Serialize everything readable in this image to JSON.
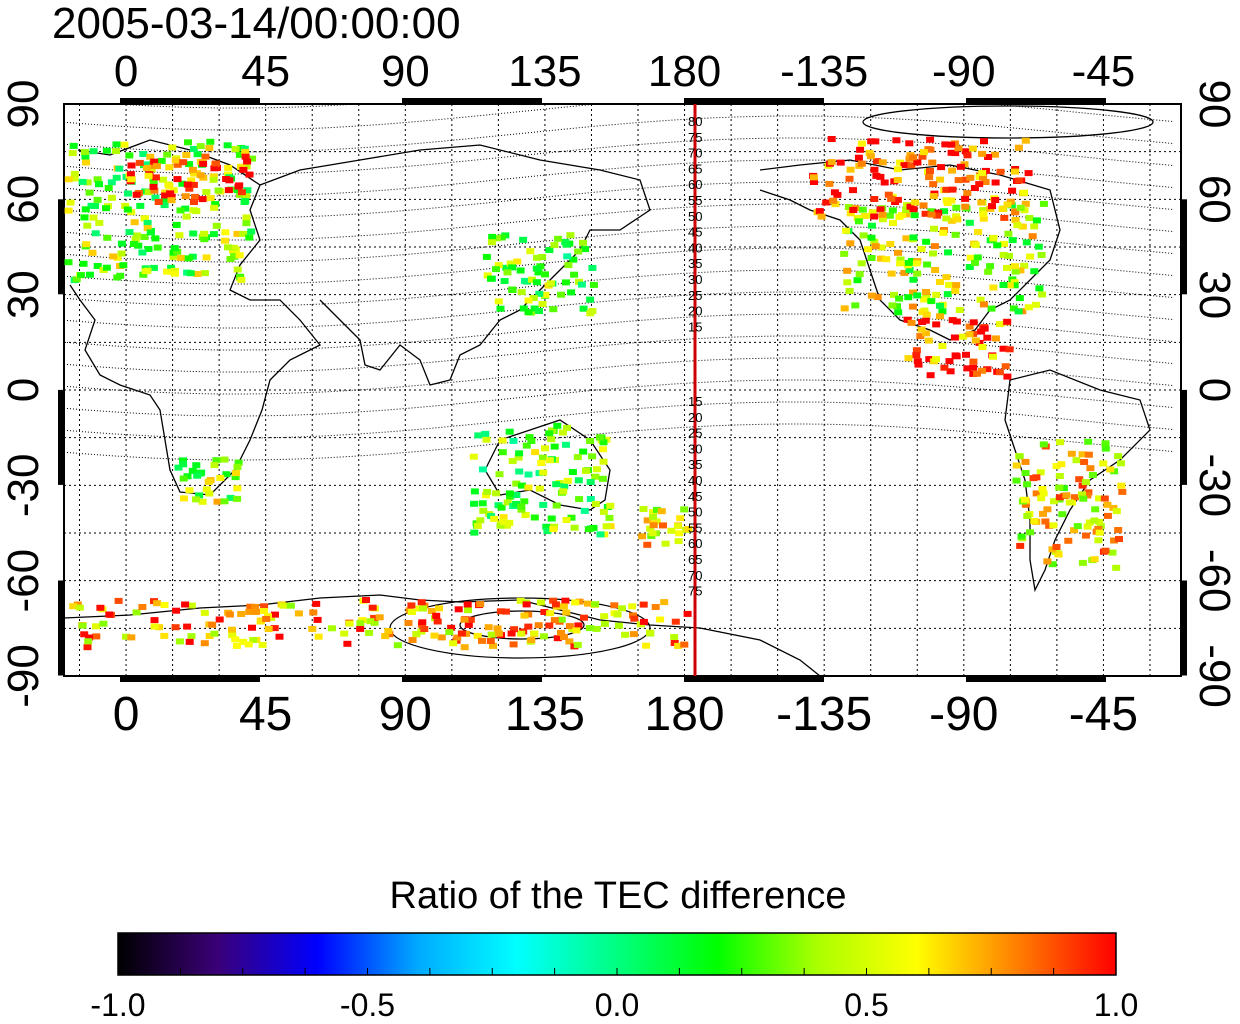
{
  "title": "2005-03-14/00:00:00",
  "top_tick_labels": [
    "0",
    "45",
    "90",
    "135",
    "180",
    "-135",
    "-90",
    "-45"
  ],
  "bottom_tick_labels": [
    "0",
    "45",
    "90",
    "135",
    "180",
    "-135",
    "-90",
    "-45"
  ],
  "left_tick_labels": [
    "90",
    "60",
    "30",
    "0",
    "-30",
    "-60",
    "-90"
  ],
  "right_tick_labels": [
    "90",
    "60",
    "30",
    "0",
    "-30",
    "-60",
    "-90"
  ],
  "meridian_labels_north": [
    "80",
    "75",
    "70",
    "65",
    "60",
    "55",
    "50",
    "45",
    "40",
    "35",
    "30",
    "25",
    "20",
    "15"
  ],
  "meridian_labels_south": [
    "15",
    "20",
    "25",
    "30",
    "35",
    "40",
    "45",
    "50",
    "55",
    "60",
    "65",
    "70",
    "75"
  ],
  "colorbar": {
    "title": "Ratio of the TEC difference",
    "tick_labels": [
      "-1.0",
      "-0.5",
      "0.0",
      "0.5",
      "1.0"
    ],
    "range": [
      -1.0,
      1.0
    ],
    "colors": [
      "#000000",
      "#3a0078",
      "#0000ff",
      "#00aaff",
      "#00ffff",
      "#00ff80",
      "#00ff00",
      "#aaff00",
      "#ffff00",
      "#ff8000",
      "#ff0000"
    ]
  },
  "colors": {
    "meridian_line": "#cc0000",
    "coastline": "#000000",
    "grid": "#000000"
  },
  "data_regions": [
    {
      "name": "europe",
      "lon": [
        -20,
        40
      ],
      "lat": [
        35,
        80
      ],
      "value": 0.35
    },
    {
      "name": "scandinavia",
      "lon": [
        0,
        40
      ],
      "lat": [
        60,
        75
      ],
      "value": 0.95
    },
    {
      "name": "japan-east-asia",
      "lon": [
        115,
        150
      ],
      "lat": [
        25,
        50
      ],
      "value": 0.3
    },
    {
      "name": "north-america",
      "lon": [
        -130,
        -65
      ],
      "lat": [
        25,
        60
      ],
      "value": 0.45
    },
    {
      "name": "canada-arctic",
      "lon": [
        -140,
        -70
      ],
      "lat": [
        55,
        80
      ],
      "value": 0.9
    },
    {
      "name": "australia",
      "lon": [
        110,
        155
      ],
      "lat": [
        -45,
        -10
      ],
      "value": 0.3
    },
    {
      "name": "new-zealand",
      "lon": [
        165,
        180
      ],
      "lat": [
        -48,
        -35
      ],
      "value": 0.55
    },
    {
      "name": "south-america",
      "lon": [
        -75,
        -40
      ],
      "lat": [
        -55,
        -15
      ],
      "value": 0.6
    },
    {
      "name": "central-america",
      "lon": [
        -110,
        -75
      ],
      "lat": [
        5,
        25
      ],
      "value": 0.9
    },
    {
      "name": "southern-africa",
      "lon": [
        15,
        35
      ],
      "lat": [
        -35,
        -20
      ],
      "value": 0.4
    },
    {
      "name": "antarctica-coast",
      "lon": [
        -20,
        180
      ],
      "lat": [
        -80,
        -65
      ],
      "value": 0.7
    }
  ]
}
